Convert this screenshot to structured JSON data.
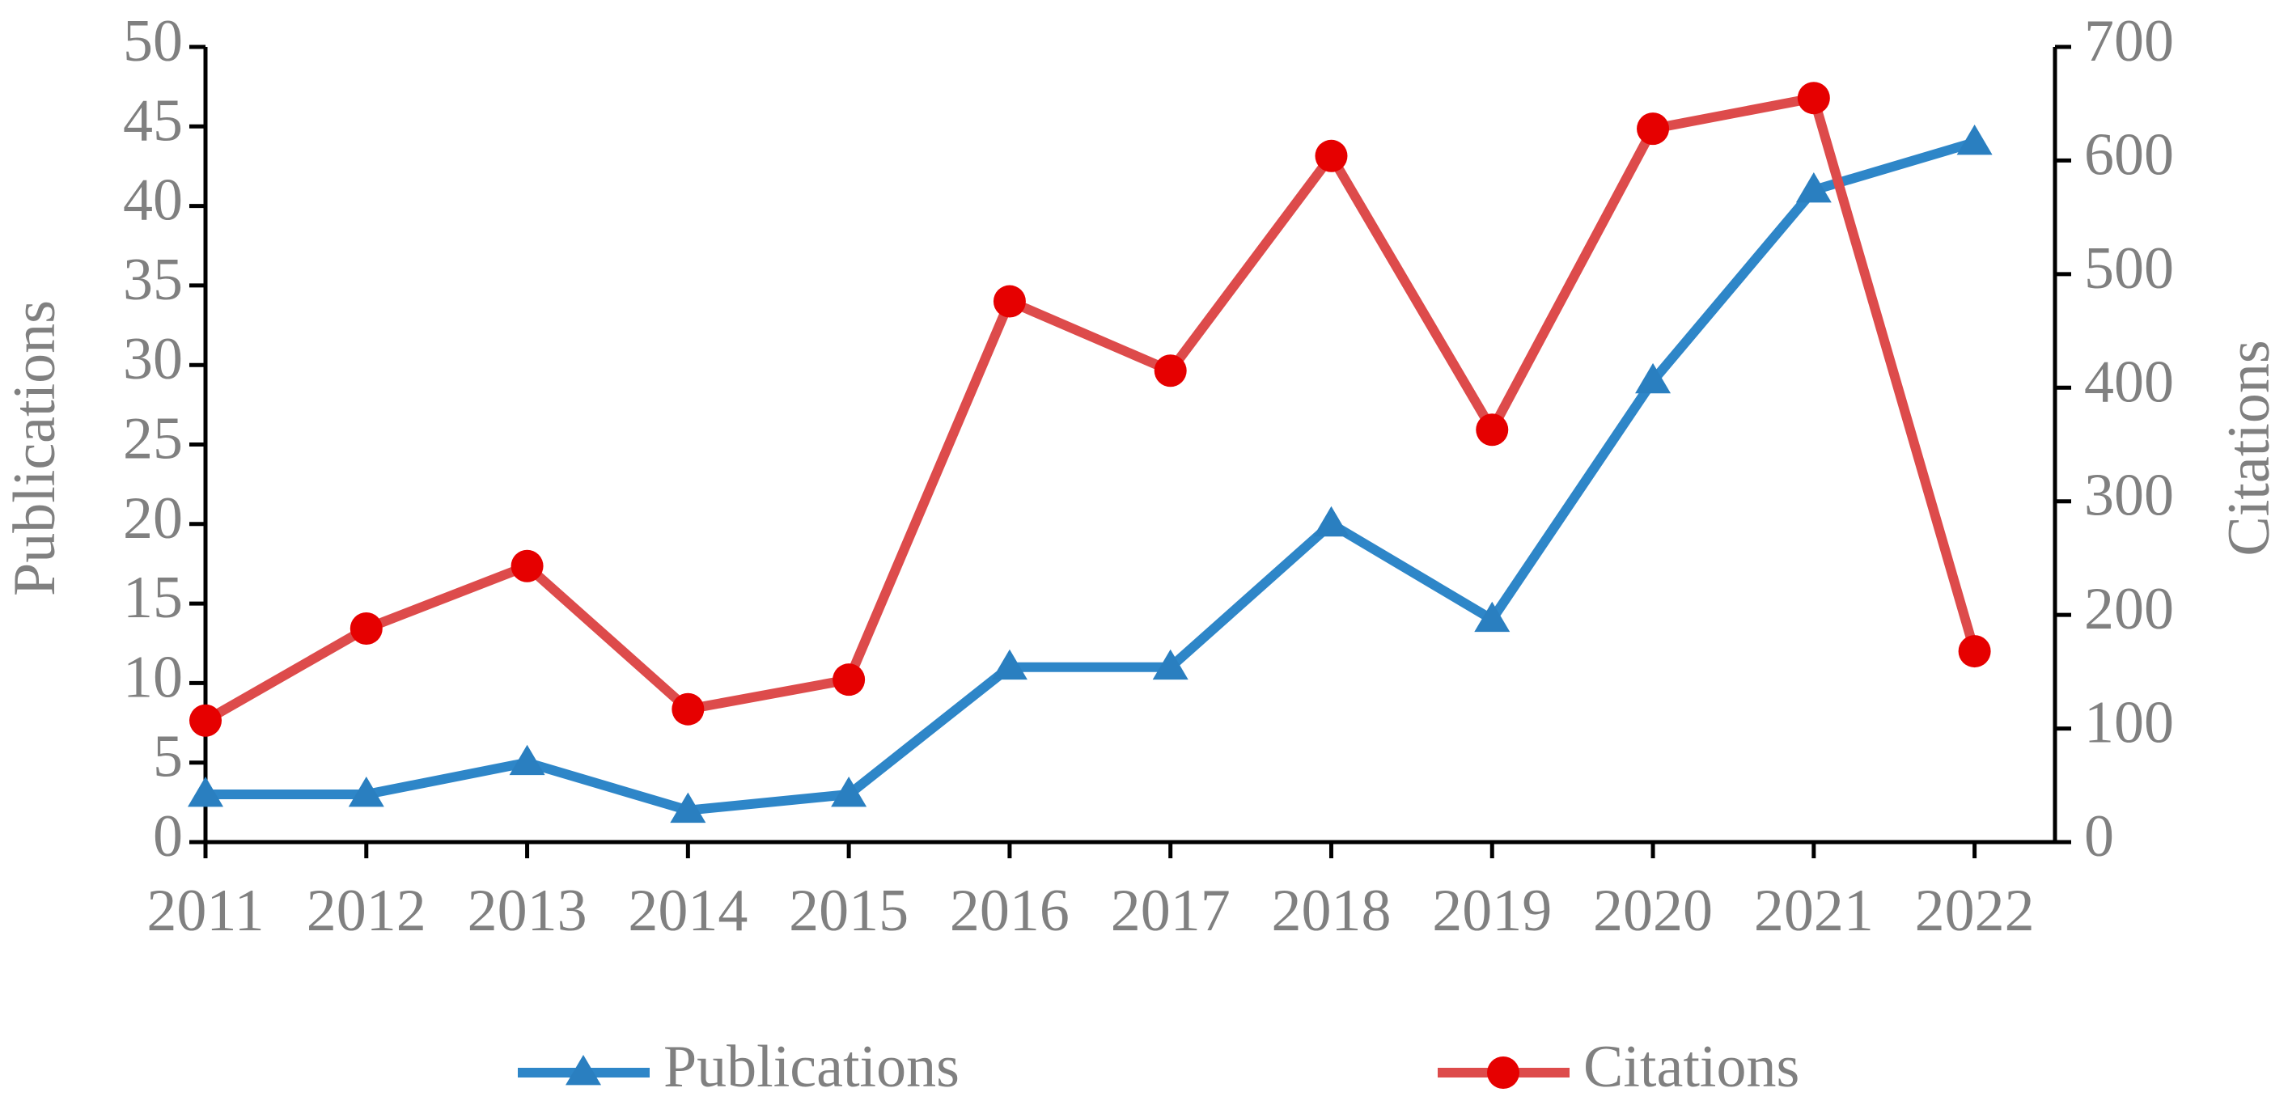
{
  "chart_data": {
    "type": "line",
    "categories": [
      "2011",
      "2012",
      "2013",
      "2014",
      "2015",
      "2016",
      "2017",
      "2018",
      "2019",
      "2020",
      "2021",
      "2022"
    ],
    "y_label": "Publications",
    "y2_label": "Citations",
    "ylim": [
      0,
      50
    ],
    "yticks": [
      0,
      5,
      10,
      15,
      20,
      25,
      30,
      35,
      40,
      45,
      50
    ],
    "y2lim": [
      0,
      700
    ],
    "y2ticks": [
      0,
      100,
      200,
      300,
      400,
      500,
      600,
      700
    ],
    "legend": "bottom",
    "series": [
      {
        "name": "Publications",
        "color": "#2e86c8",
        "marker": "triangle",
        "marker_color": "#2a7fc0",
        "values": [
          3,
          3,
          5,
          2,
          3,
          11,
          11,
          20,
          14,
          29,
          41,
          44
        ]
      },
      {
        "name": "Citations",
        "color": "#dd4b4b",
        "marker": "circle",
        "marker_color": "#e60000",
        "axis": "y2",
        "values": [
          107,
          188,
          243,
          117,
          143,
          476,
          415,
          604,
          363,
          628,
          655,
          168
        ]
      }
    ]
  }
}
